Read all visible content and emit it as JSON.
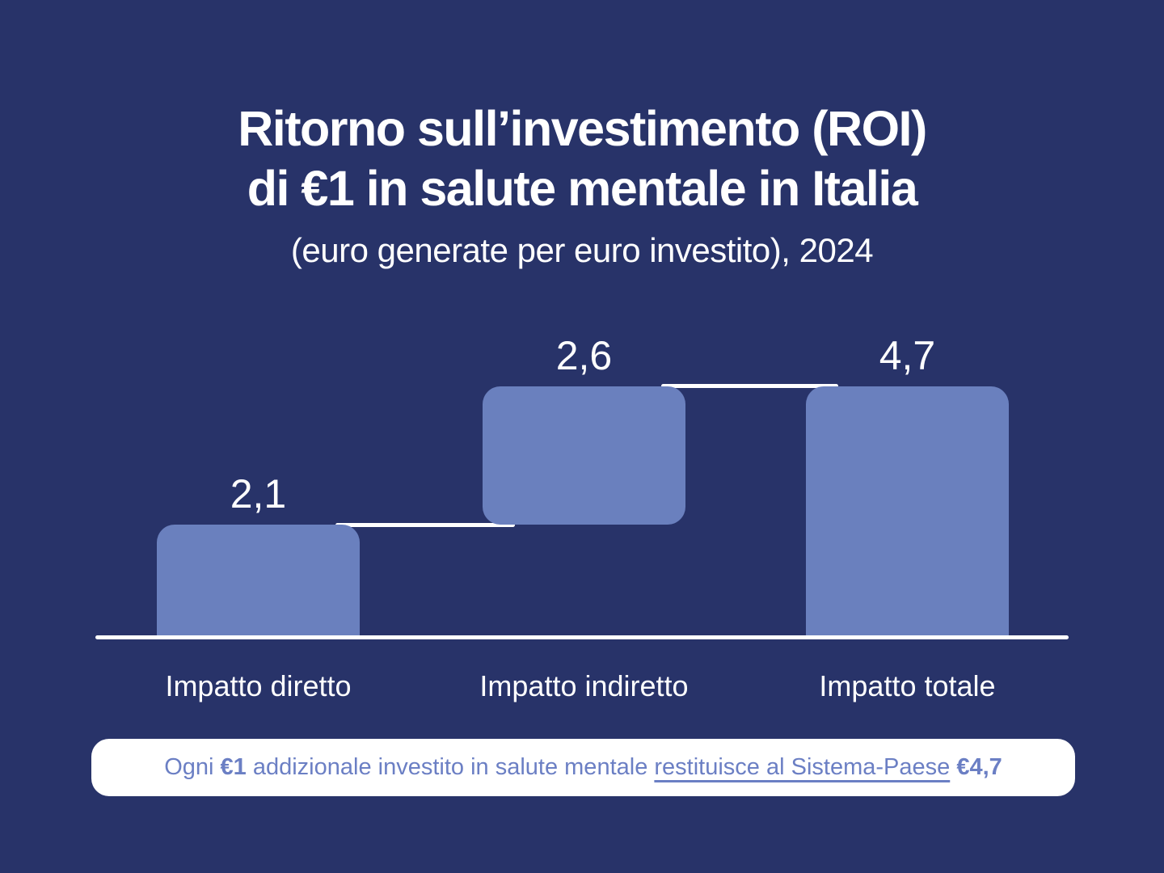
{
  "title": {
    "line1": "Ritorno sull’investimento (ROI)",
    "line2": "di €1 in salute mentale in Italia",
    "subtitle": "(euro generate per euro investito), 2024"
  },
  "chart_data": {
    "type": "bar",
    "subtype": "waterfall",
    "title": "Ritorno sull’investimento (ROI) di €1 in salute mentale in Italia",
    "subtitle": "(euro generate per euro investito), 2024",
    "categories": [
      "Impatto diretto",
      "Impatto indiretto",
      "Impatto totale"
    ],
    "values": [
      2.1,
      2.6,
      4.7
    ],
    "value_labels": [
      "2,1",
      "2,6",
      "4,7"
    ],
    "segments": [
      {
        "label": "Impatto diretto",
        "start": 0,
        "end": 2.1,
        "value_label": "2,1"
      },
      {
        "label": "Impatto indiretto",
        "start": 2.1,
        "end": 4.7,
        "value_label": "2,6"
      },
      {
        "label": "Impatto totale",
        "start": 0,
        "end": 4.7,
        "value_label": "4,7"
      }
    ],
    "ylim": [
      0,
      4.7
    ],
    "grid": false,
    "legend": false,
    "bar_color": "#6A80BE",
    "axis_color": "#FFFFFF",
    "label_color": "#FFFFFF"
  },
  "note": {
    "parts": [
      {
        "text": "Ogni ",
        "style": "regular"
      },
      {
        "text": "€1",
        "style": "bold"
      },
      {
        "text": " addizionale investito in salute mentale ",
        "style": "regular"
      },
      {
        "text": "restituisce al Sistema-Paese",
        "style": "underline"
      },
      {
        "text": " ",
        "style": "regular"
      },
      {
        "text": "€4,7",
        "style": "bold"
      }
    ]
  },
  "colors": {
    "background": "#283369",
    "bar": "#6A80BE",
    "text": "#FFFFFF",
    "note_background": "#FFFFFF",
    "note_text": "#6B7FC4"
  }
}
